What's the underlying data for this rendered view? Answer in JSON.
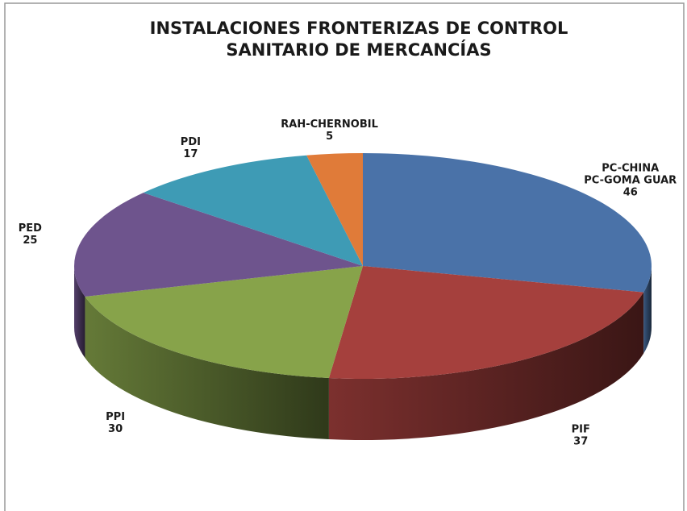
{
  "chart_data": {
    "type": "pie3d",
    "title": "INSTALACIONES FRONTERIZAS DE CONTROL\nSANITARIO DE MERCANCÍAS",
    "categories": [
      "PC-CHINA\nPC-GOMA GUAR",
      "PIF",
      "PPI",
      "PED",
      "PDI",
      "RAH-CHERNOBIL"
    ],
    "values": [
      46,
      37,
      30,
      25,
      17,
      5
    ],
    "colors": [
      "#4a72a8",
      "#a5403d",
      "#87a34a",
      "#6e548d",
      "#3e9bb5",
      "#e07b39"
    ]
  }
}
